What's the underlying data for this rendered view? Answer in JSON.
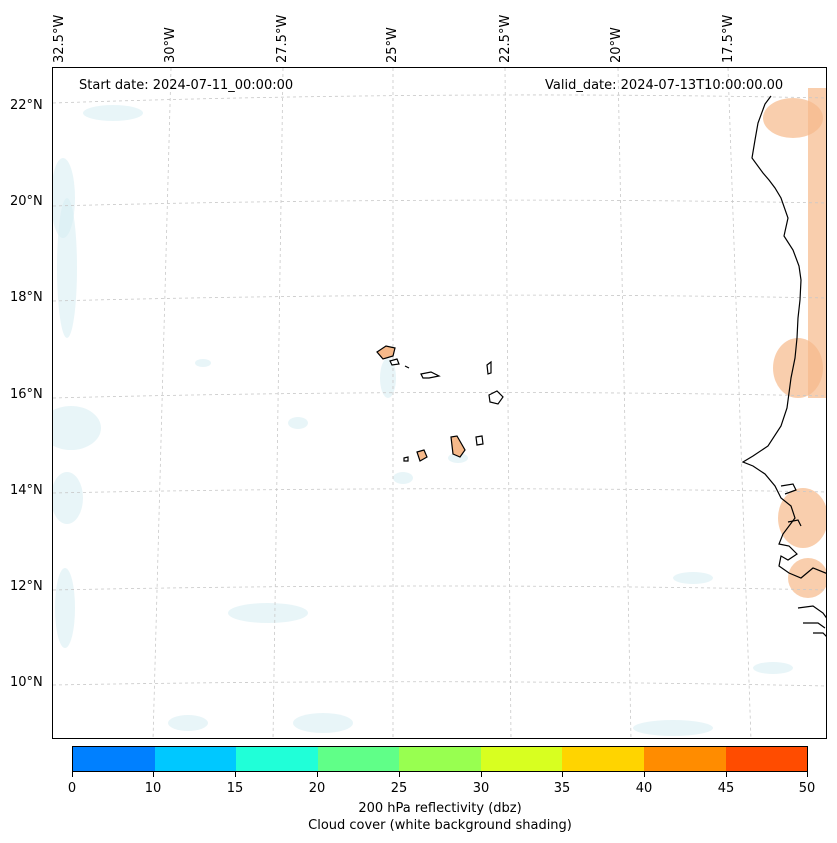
{
  "map": {
    "start_date": "Start date: 2024-07-11_00:00:00",
    "valid_date": "Valid_date: 2024-07-13T10:00:00.00",
    "lat_labels": [
      "22°N",
      "20°N",
      "18°N",
      "16°N",
      "14°N",
      "12°N",
      "10°N"
    ],
    "lon_labels": [
      "32.5°W",
      "30°W",
      "27.5°W",
      "25°W",
      "22.5°W",
      "20°W",
      "17.5°W"
    ],
    "region": "Cape Verde islands and West African coast"
  },
  "colorbar": {
    "ticks": [
      "0",
      "10",
      "15",
      "20",
      "25",
      "30",
      "35",
      "40",
      "45",
      "50"
    ],
    "colors": [
      "#0080ff",
      "#00c8ff",
      "#20ffd8",
      "#60ff88",
      "#98ff50",
      "#d8ff20",
      "#ffd400",
      "#ff8c00",
      "#ff4c00"
    ],
    "label_line1": "200 hPa reflectivity (dbz)",
    "label_line2": "Cloud cover (white background shading)"
  }
}
